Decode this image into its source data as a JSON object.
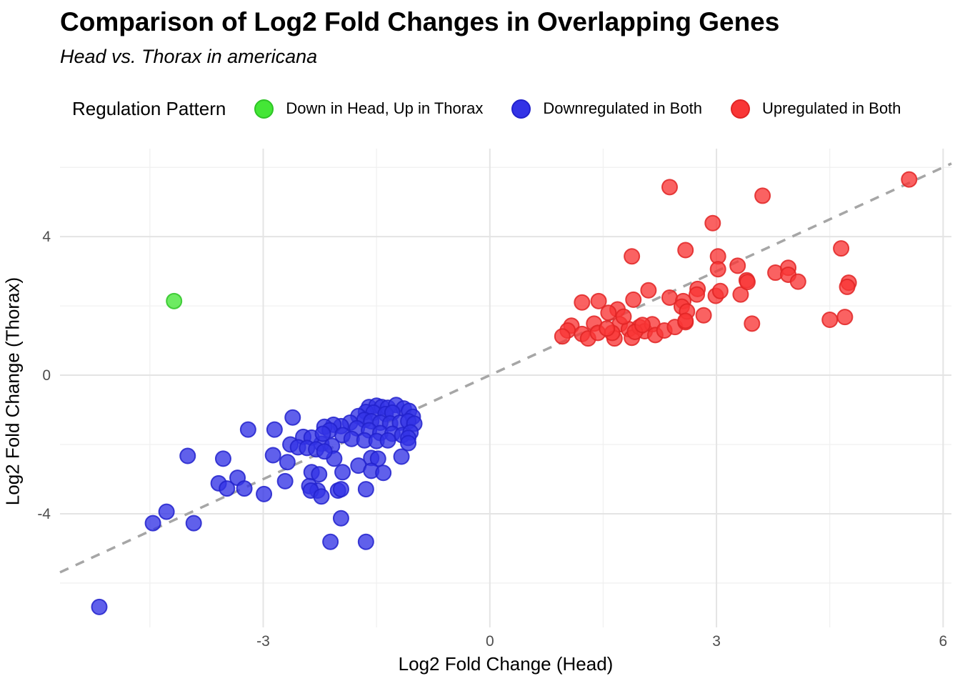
{
  "header": {
    "title": "Comparison of Log2 Fold Changes in Overlapping Genes",
    "subtitle": "Head vs. Thorax in americana"
  },
  "legend": {
    "title": "Regulation Pattern",
    "items": [
      {
        "label": "Down in Head, Up in Thorax",
        "color": "#44e636",
        "stroke": "#2ec426"
      },
      {
        "label": "Downregulated in Both",
        "color": "#3333e6",
        "stroke": "#2222cc"
      },
      {
        "label": "Upregulated in Both",
        "color": "#f93636",
        "stroke": "#e02525"
      }
    ]
  },
  "chart_data": {
    "type": "scatter",
    "title": "Comparison of Log2 Fold Changes in Overlapping Genes",
    "subtitle": "Head vs. Thorax in americana",
    "xlabel": "Log2 Fold Change (Head)",
    "ylabel": "Log2 Fold Change (Thorax)",
    "xlim": [
      -5.69,
      6.11
    ],
    "ylim": [
      -7.28,
      6.54
    ],
    "x_ticks": [
      -3,
      0,
      3,
      6
    ],
    "y_ticks": [
      -4,
      0,
      4
    ],
    "x_minor": [
      -4.5,
      -1.5,
      1.5,
      4.5
    ],
    "y_minor": [
      -6,
      -2,
      2,
      6
    ],
    "grid": "on",
    "legend_position": "top",
    "reference_line": {
      "type": "identity y=x",
      "style": "dashed",
      "color": "#a6a6a6"
    },
    "point_alpha": 0.78,
    "series": [
      {
        "name": "Down in Head, Up in Thorax",
        "color": "#44e636",
        "stroke": "#2ec426",
        "points": [
          [
            -4.18,
            2.14
          ]
        ]
      },
      {
        "name": "Downregulated in Both",
        "color": "#3333e6",
        "stroke": "#2222cc",
        "points": [
          [
            -1.6,
            -0.92
          ],
          [
            -1.5,
            -0.88
          ],
          [
            -1.43,
            -0.92
          ],
          [
            -1.35,
            -0.94
          ],
          [
            -1.24,
            -0.86
          ],
          [
            -1.14,
            -0.96
          ],
          [
            -1.64,
            -1.06
          ],
          [
            -1.54,
            -1.08
          ],
          [
            -1.38,
            -1.12
          ],
          [
            -1.29,
            -1.08
          ],
          [
            -1.07,
            -1.03
          ],
          [
            -1.02,
            -1.2
          ],
          [
            -1.74,
            -1.18
          ],
          [
            -1.66,
            -1.29
          ],
          [
            -1.57,
            -1.33
          ],
          [
            -1.45,
            -1.37
          ],
          [
            -1.32,
            -1.39
          ],
          [
            -1.19,
            -1.37
          ],
          [
            -1.08,
            -1.33
          ],
          [
            -1.0,
            -1.4
          ],
          [
            -1.85,
            -1.37
          ],
          [
            -1.97,
            -1.47
          ],
          [
            -2.07,
            -1.43
          ],
          [
            -2.19,
            -1.49
          ],
          [
            -2.12,
            -1.59
          ],
          [
            -1.76,
            -1.53
          ],
          [
            -1.6,
            -1.59
          ],
          [
            -1.45,
            -1.67
          ],
          [
            -1.29,
            -1.69
          ],
          [
            -1.16,
            -1.73
          ],
          [
            -1.05,
            -1.65
          ],
          [
            -1.95,
            -1.73
          ],
          [
            -1.83,
            -1.84
          ],
          [
            -1.66,
            -1.88
          ],
          [
            -1.5,
            -1.9
          ],
          [
            -1.35,
            -1.88
          ],
          [
            -1.08,
            -1.81
          ],
          [
            -2.23,
            -1.98
          ],
          [
            -2.09,
            -2.04
          ],
          [
            -1.08,
            -1.96
          ],
          [
            -2.06,
            -2.41
          ],
          [
            -1.57,
            -2.39
          ],
          [
            -1.48,
            -2.41
          ],
          [
            -1.17,
            -2.35
          ],
          [
            -1.74,
            -2.61
          ],
          [
            -1.57,
            -2.76
          ],
          [
            -1.41,
            -2.82
          ],
          [
            -1.95,
            -2.8
          ],
          [
            -3.2,
            -1.57
          ],
          [
            -2.85,
            -1.57
          ],
          [
            -2.61,
            -1.22
          ],
          [
            -2.47,
            -1.78
          ],
          [
            -2.36,
            -1.8
          ],
          [
            -2.21,
            -1.69
          ],
          [
            -2.64,
            -2.0
          ],
          [
            -2.54,
            -2.08
          ],
          [
            -2.42,
            -2.1
          ],
          [
            -2.3,
            -2.14
          ],
          [
            -2.19,
            -2.2
          ],
          [
            -2.87,
            -2.31
          ],
          [
            -2.68,
            -2.51
          ],
          [
            -3.53,
            -2.41
          ],
          [
            -3.34,
            -2.96
          ],
          [
            -3.59,
            -3.12
          ],
          [
            -3.48,
            -3.27
          ],
          [
            -3.25,
            -3.27
          ],
          [
            -2.99,
            -3.43
          ],
          [
            -2.71,
            -3.06
          ],
          [
            -2.36,
            -2.8
          ],
          [
            -2.26,
            -2.86
          ],
          [
            -2.39,
            -3.2
          ],
          [
            -2.28,
            -3.33
          ],
          [
            -4.0,
            -2.33
          ],
          [
            -4.28,
            -3.94
          ],
          [
            -4.46,
            -4.27
          ],
          [
            -3.92,
            -4.27
          ],
          [
            -2.37,
            -3.33
          ],
          [
            -2.23,
            -3.5
          ],
          [
            -2.01,
            -3.33
          ],
          [
            -1.97,
            -3.29
          ],
          [
            -1.64,
            -3.29
          ],
          [
            -1.97,
            -4.13
          ],
          [
            -2.11,
            -4.81
          ],
          [
            -1.64,
            -4.81
          ],
          [
            -5.17,
            -6.69
          ]
        ]
      },
      {
        "name": "Upregulated in Both",
        "color": "#f93636",
        "stroke": "#e02525",
        "points": [
          [
            1.22,
            2.1
          ],
          [
            1.44,
            2.14
          ],
          [
            1.69,
            1.9
          ],
          [
            1.9,
            2.18
          ],
          [
            2.1,
            2.45
          ],
          [
            2.38,
            2.24
          ],
          [
            2.56,
            2.14
          ],
          [
            1.08,
            1.43
          ],
          [
            1.03,
            1.29
          ],
          [
            0.96,
            1.12
          ],
          [
            1.22,
            1.19
          ],
          [
            1.3,
            1.06
          ],
          [
            1.38,
            1.49
          ],
          [
            1.43,
            1.22
          ],
          [
            1.65,
            1.06
          ],
          [
            1.72,
            1.47
          ],
          [
            1.84,
            1.33
          ],
          [
            1.88,
            1.08
          ],
          [
            1.98,
            1.39
          ],
          [
            2.05,
            1.27
          ],
          [
            2.15,
            1.47
          ],
          [
            2.19,
            1.16
          ],
          [
            2.31,
            1.29
          ],
          [
            2.45,
            1.39
          ],
          [
            2.59,
            1.53
          ],
          [
            1.57,
            1.8
          ],
          [
            1.77,
            1.69
          ],
          [
            1.62,
            1.22
          ],
          [
            1.92,
            1.25
          ],
          [
            2.02,
            1.45
          ],
          [
            1.55,
            1.35
          ],
          [
            2.38,
            5.43
          ],
          [
            3.61,
            5.18
          ],
          [
            2.95,
            4.39
          ],
          [
            5.55,
            5.65
          ],
          [
            2.59,
            3.61
          ],
          [
            1.88,
            3.43
          ],
          [
            3.02,
            3.43
          ],
          [
            3.02,
            3.06
          ],
          [
            3.28,
            3.16
          ],
          [
            3.4,
            2.74
          ],
          [
            3.78,
            2.96
          ],
          [
            3.95,
            3.1
          ],
          [
            3.95,
            2.9
          ],
          [
            4.08,
            2.7
          ],
          [
            4.65,
            3.66
          ],
          [
            4.75,
            2.67
          ],
          [
            2.75,
            2.49
          ],
          [
            2.74,
            2.33
          ],
          [
            2.99,
            2.29
          ],
          [
            3.05,
            2.43
          ],
          [
            3.32,
            2.33
          ],
          [
            3.41,
            2.69
          ],
          [
            4.73,
            2.55
          ],
          [
            2.54,
            1.98
          ],
          [
            2.61,
            1.84
          ],
          [
            2.83,
            1.73
          ],
          [
            2.59,
            1.57
          ],
          [
            3.47,
            1.49
          ],
          [
            4.5,
            1.6
          ],
          [
            4.7,
            1.68
          ]
        ]
      }
    ]
  }
}
